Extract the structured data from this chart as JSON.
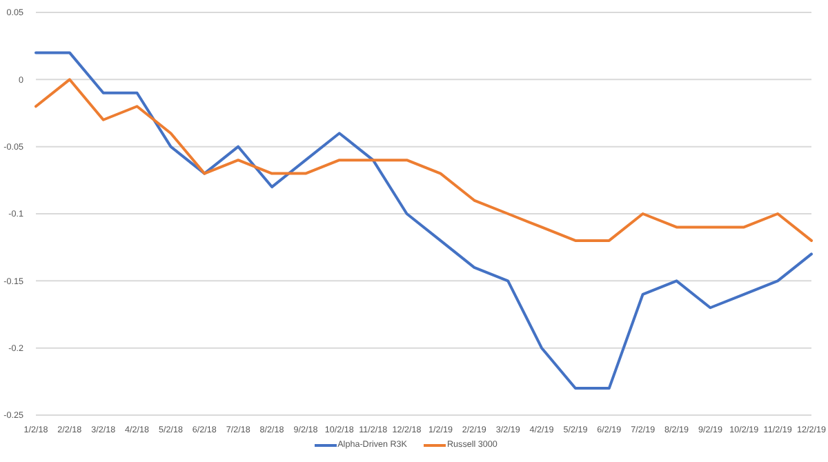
{
  "chart_data": {
    "type": "line",
    "categories": [
      "1/2/18",
      "2/2/18",
      "3/2/18",
      "4/2/18",
      "5/2/18",
      "6/2/18",
      "7/2/18",
      "8/2/18",
      "9/2/18",
      "10/2/18",
      "11/2/18",
      "12/2/18",
      "1/2/19",
      "2/2/19",
      "3/2/19",
      "4/2/19",
      "5/2/19",
      "6/2/19",
      "7/2/19",
      "8/2/19",
      "9/2/19",
      "10/2/19",
      "11/2/19",
      "12/2/19"
    ],
    "series": [
      {
        "name": "Alpha-Driven R3K",
        "color": "#4472c4",
        "values": [
          0.02,
          0.02,
          -0.01,
          -0.01,
          -0.05,
          -0.07,
          -0.05,
          -0.08,
          -0.06,
          -0.04,
          -0.06,
          -0.1,
          -0.12,
          -0.14,
          -0.15,
          -0.2,
          -0.23,
          -0.23,
          -0.16,
          -0.15,
          -0.17,
          -0.16,
          -0.15,
          -0.13
        ]
      },
      {
        "name": "Russell 3000",
        "color": "#ed7d31",
        "values": [
          -0.02,
          0,
          -0.03,
          -0.02,
          -0.04,
          -0.07,
          -0.06,
          -0.07,
          -0.07,
          -0.06,
          -0.06,
          -0.06,
          -0.07,
          -0.09,
          -0.1,
          -0.11,
          -0.12,
          -0.12,
          -0.1,
          -0.11,
          -0.11,
          -0.11,
          -0.1,
          -0.12
        ]
      }
    ],
    "ylim": [
      -0.25,
      0.05
    ],
    "yticks": [
      0.05,
      0,
      -0.05,
      -0.1,
      -0.15,
      -0.2,
      -0.25
    ],
    "grid": "y",
    "legend": "bottom"
  }
}
